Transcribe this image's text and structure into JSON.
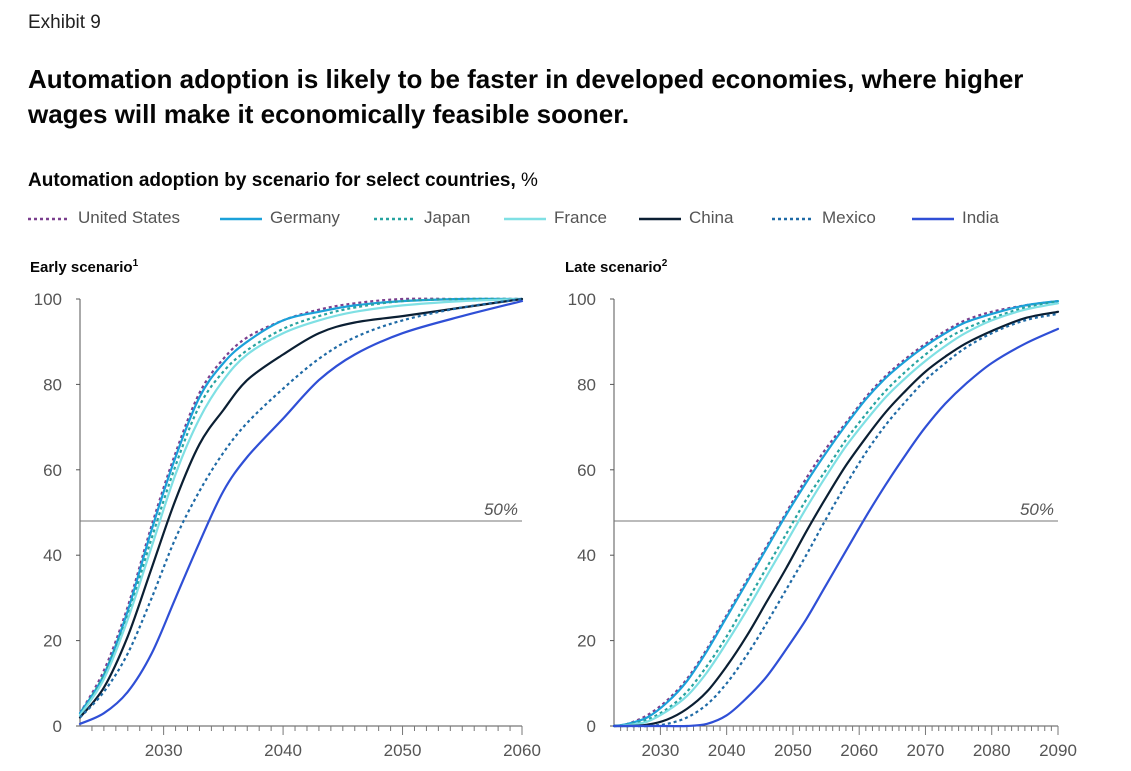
{
  "exhibit": "Exhibit 9",
  "headline": "Automation adoption is likely to be faster in developed economies, where higher wages will make it economically feasible sooner.",
  "subtitle": "Automation adoption by scenario for select countries,",
  "subtitle_unit": "%",
  "legend": [
    {
      "name": "United States",
      "color": "#7b3f8e",
      "style": "dotted"
    },
    {
      "name": "Germany",
      "color": "#1ba1d9",
      "style": "solid"
    },
    {
      "name": "Japan",
      "color": "#26a3a0",
      "style": "dotted"
    },
    {
      "name": "France",
      "color": "#7fe0e4",
      "style": "solid"
    },
    {
      "name": "China",
      "color": "#0b1f33",
      "style": "solid"
    },
    {
      "name": "Mexico",
      "color": "#1f6aa6",
      "style": "dotted"
    },
    {
      "name": "India",
      "color": "#2f4fd6",
      "style": "solid"
    }
  ],
  "chart_data": [
    {
      "type": "line",
      "title": "Early scenario",
      "title_footnote": "1",
      "xlim": [
        2023,
        2060
      ],
      "ylim": [
        0,
        100
      ],
      "xticks": [
        2030,
        2040,
        2050,
        2060
      ],
      "yticks": [
        0,
        20,
        40,
        60,
        80,
        100
      ],
      "reference_line": {
        "y": 48,
        "label": "50%"
      },
      "x": [
        2023,
        2025,
        2027,
        2029,
        2031,
        2033,
        2035,
        2037,
        2040,
        2043,
        2046,
        2050,
        2055,
        2060
      ],
      "series": [
        {
          "name": "United States",
          "values": [
            3,
            13,
            28,
            47,
            64,
            78,
            86,
            91,
            95,
            97.5,
            99,
            100,
            100,
            100
          ]
        },
        {
          "name": "Germany",
          "values": [
            3,
            12,
            27,
            46,
            63,
            77,
            85,
            90,
            95,
            97,
            98.5,
            99.5,
            100,
            100
          ]
        },
        {
          "name": "Japan",
          "values": [
            2.5,
            12,
            26,
            44,
            61,
            75,
            83,
            88,
            93,
            96,
            98,
            99.5,
            100,
            100
          ]
        },
        {
          "name": "France",
          "values": [
            2.5,
            11,
            25,
            42,
            59,
            72,
            81,
            87,
            92,
            95,
            97,
            98.5,
            99.5,
            100
          ]
        },
        {
          "name": "China",
          "values": [
            2,
            9,
            21,
            37,
            53,
            66,
            74,
            81,
            87,
            92,
            94.5,
            96,
            98,
            100
          ]
        },
        {
          "name": "Mexico",
          "values": [
            2,
            8,
            17,
            30,
            44,
            55,
            64,
            71,
            79,
            86,
            91,
            95,
            98,
            100
          ]
        },
        {
          "name": "India",
          "values": [
            0.5,
            3,
            8,
            17,
            30,
            43,
            55,
            63,
            72,
            81,
            87,
            92,
            96,
            99.5
          ]
        }
      ]
    },
    {
      "type": "line",
      "title": "Late scenario",
      "title_footnote": "2",
      "xlim": [
        2023,
        2090
      ],
      "ylim": [
        0,
        100
      ],
      "xticks": [
        2030,
        2040,
        2050,
        2060,
        2070,
        2080,
        2090
      ],
      "yticks": [
        0,
        20,
        40,
        60,
        80,
        100
      ],
      "reference_line": {
        "y": 48,
        "label": "50%"
      },
      "x": [
        2023,
        2025,
        2028,
        2031,
        2034,
        2037,
        2040,
        2043,
        2046,
        2049,
        2052,
        2055,
        2058,
        2061,
        2064,
        2067,
        2070,
        2073,
        2076,
        2080,
        2085,
        2090
      ],
      "series": [
        {
          "name": "United States",
          "values": [
            0,
            0.5,
            2.5,
            6,
            11,
            18,
            26,
            34,
            42,
            50,
            58,
            65,
            71,
            77,
            82,
            86,
            89.5,
            92.5,
            95,
            97,
            98.5,
            99.5
          ]
        },
        {
          "name": "Germany",
          "values": [
            0,
            0.5,
            2,
            5.5,
            10.5,
            17.5,
            25.5,
            33.5,
            41.5,
            49.5,
            57,
            64,
            70.5,
            76.5,
            81.5,
            85.5,
            89,
            92,
            94.5,
            96.5,
            98.5,
            99.5
          ]
        },
        {
          "name": "Japan",
          "values": [
            0,
            0.3,
            1.5,
            4,
            8,
            14,
            21,
            29,
            37,
            45,
            53,
            60,
            67,
            73,
            78.5,
            83,
            87,
            90.5,
            93,
            95.5,
            98,
            99.5
          ]
        },
        {
          "name": "France",
          "values": [
            0,
            0.2,
            1,
            3.5,
            7,
            12.5,
            19.5,
            27,
            35,
            43,
            51,
            58.5,
            65.5,
            71.5,
            77,
            81.5,
            85.5,
            89,
            92,
            95,
            97.5,
            99
          ]
        },
        {
          "name": "China",
          "values": [
            0,
            0,
            0.3,
            1.5,
            4,
            8,
            14,
            21,
            29,
            37,
            45.5,
            53.5,
            61,
            67.5,
            73.5,
            78.5,
            83,
            86.5,
            89.5,
            92.5,
            95.5,
            97
          ]
        },
        {
          "name": "Mexico",
          "values": [
            0,
            0,
            0,
            0.5,
            2,
            5,
            10,
            16.5,
            24,
            32,
            40,
            48.5,
            56.5,
            64,
            70.5,
            76,
            81,
            85,
            88.5,
            92,
            95,
            96.5
          ]
        },
        {
          "name": "India",
          "values": [
            0,
            0,
            0,
            0,
            0,
            0.5,
            2.5,
            6.5,
            11.5,
            18,
            25,
            33,
            41,
            49,
            56.5,
            63.5,
            70,
            75.5,
            80,
            85,
            89.5,
            93
          ]
        }
      ]
    }
  ]
}
